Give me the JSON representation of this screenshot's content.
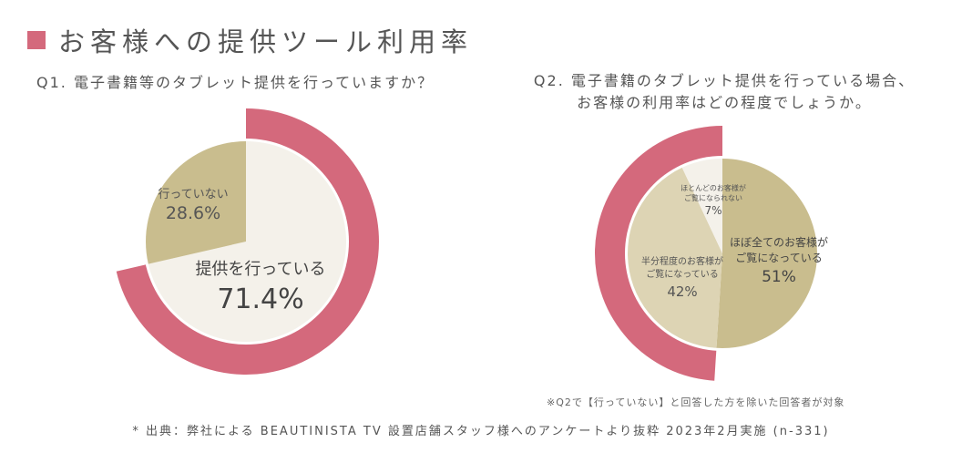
{
  "title": "お客様への提供ツール利用率",
  "colors": {
    "accent": "#d4697c",
    "tan": "#c9bd8e",
    "cream": "#f4f1ea"
  },
  "q1": {
    "question": "Q1. 電子書籍等のタブレット提供を行っていますか？"
  },
  "q2": {
    "question_line1": "Q2. 電子書籍のタブレット提供を行っている場合、",
    "question_line2": "お客様の利用率はどの程度でしょうか。"
  },
  "chart_data": [
    {
      "type": "pie",
      "categories": [
        "提供を行っている",
        "行っていない"
      ],
      "values": [
        71.4,
        28.6
      ],
      "value_labels": [
        "71.4%",
        "28.6%"
      ],
      "colors": [
        "#f4f1ea",
        "#c9bd8e"
      ],
      "highlight": "提供を行っている"
    },
    {
      "type": "pie",
      "categories": [
        "ほぼ全てのお客様がご覧になっている",
        "半分程度のお客様がご覧になっている",
        "ほとんどのお客様がご覧になられない"
      ],
      "label_lines": [
        [
          "ほぼ全てのお客様が",
          "ご覧になっている"
        ],
        [
          "半分程度のお客様が",
          "ご覧になっている"
        ],
        [
          "ほとんどのお客様が",
          "ご覧になられない"
        ]
      ],
      "values": [
        51,
        42,
        7
      ],
      "value_labels": [
        "51%",
        "42%",
        "7%"
      ],
      "colors": [
        "#c9bd8e",
        "#ddd4b4",
        "#f4f1ea"
      ],
      "highlight": [
        "半分程度のお客様がご覧になっている",
        "ほとんどのお客様がご覧になられない"
      ]
    }
  ],
  "footnote": "※Q2で【行っていない】と回答した方を除いた回答者が対象",
  "source": "* 出典：弊社による BEAUTINISTA TV 設置店舗スタッフ様へのアンケートより抜粋 2023年2月実施 (n-331)"
}
